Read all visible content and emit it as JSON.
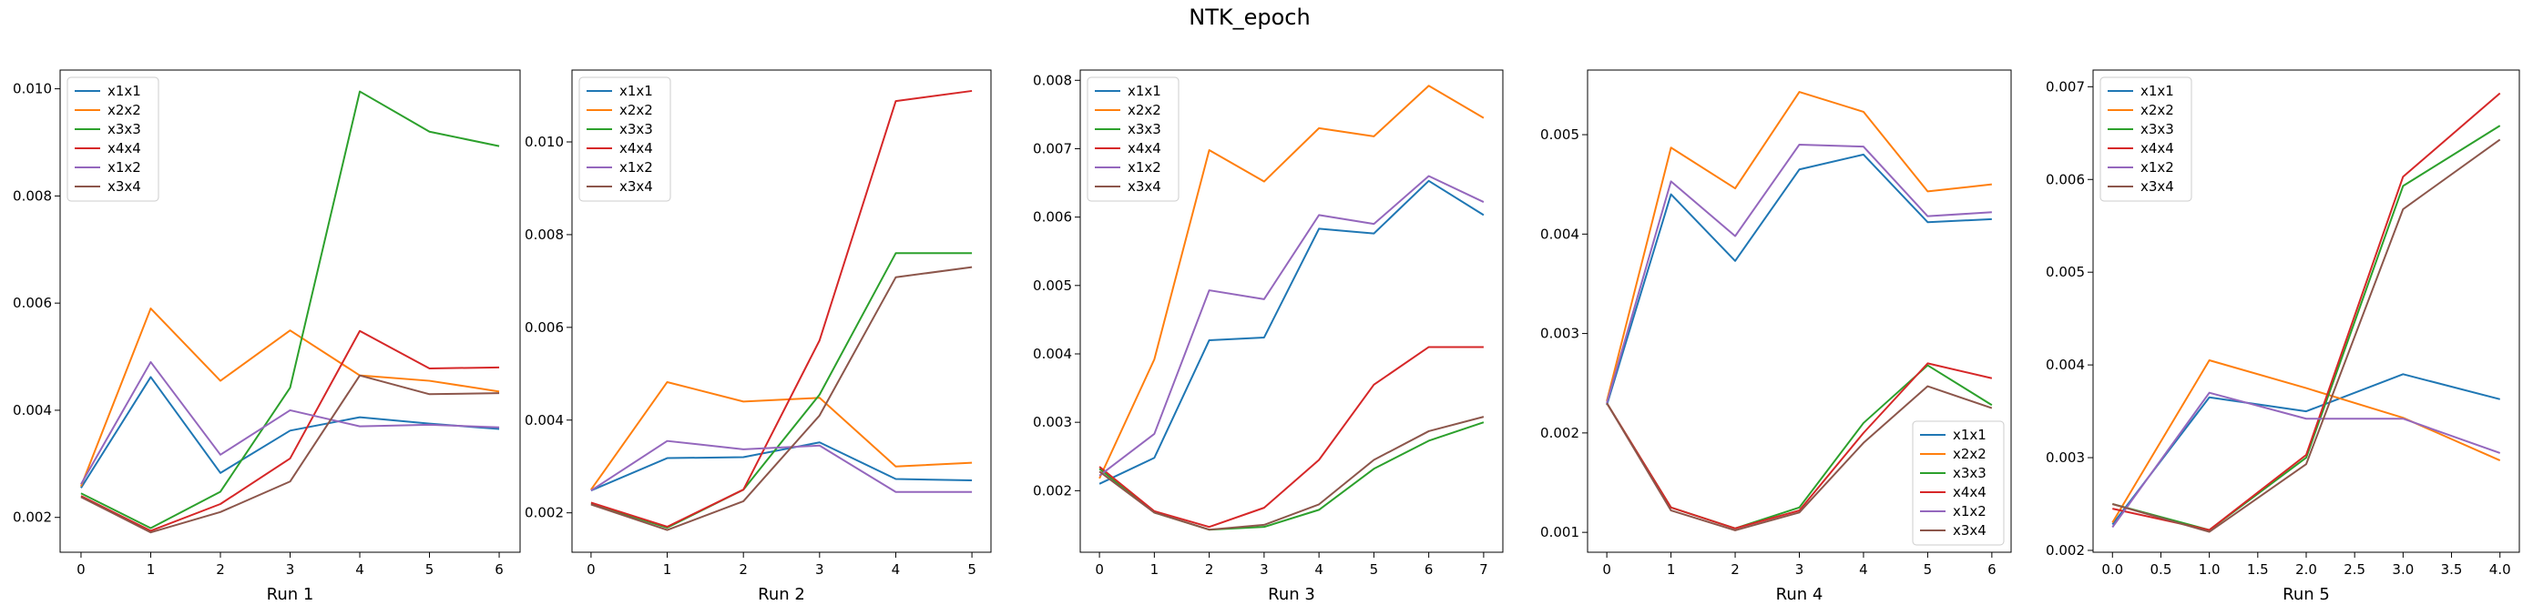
{
  "figure": {
    "suptitle": "NTK_epoch"
  },
  "colors": {
    "x1x1": "#1f77b4",
    "x2x2": "#ff7f0e",
    "x3x3": "#2ca02c",
    "x4x4": "#d62728",
    "x1x2": "#9467bd",
    "x3x4": "#8c564b"
  },
  "chart_data": [
    {
      "type": "line",
      "xlabel": "Run 1",
      "x": [
        0,
        1,
        2,
        3,
        4,
        5,
        6
      ],
      "xticks": [
        "0",
        "1",
        "2",
        "3",
        "4",
        "5",
        "6"
      ],
      "xlim": [
        -0.3,
        6.3
      ],
      "ylim": [
        0.00135,
        0.01035
      ],
      "yticks": [
        "0.002",
        "0.004",
        "0.006",
        "0.008",
        "0.010"
      ],
      "ytick_values": [
        0.002,
        0.004,
        0.006,
        0.008,
        0.01
      ],
      "legend": "top-left",
      "series": [
        {
          "name": "x1x1",
          "values": [
            0.00255,
            0.00462,
            0.00283,
            0.00362,
            0.00387,
            0.00375,
            0.00365
          ]
        },
        {
          "name": "x2x2",
          "values": [
            0.00258,
            0.0059,
            0.00455,
            0.00549,
            0.00465,
            0.00455,
            0.00435
          ]
        },
        {
          "name": "x3x3",
          "values": [
            0.00245,
            0.0018,
            0.00248,
            0.00442,
            0.00995,
            0.0092,
            0.00893
          ]
        },
        {
          "name": "x4x4",
          "values": [
            0.0024,
            0.00175,
            0.00225,
            0.0031,
            0.00548,
            0.00478,
            0.0048
          ]
        },
        {
          "name": "x1x2",
          "values": [
            0.00262,
            0.0049,
            0.00317,
            0.004,
            0.0037,
            0.00373,
            0.00368
          ]
        },
        {
          "name": "x3x4",
          "values": [
            0.00238,
            0.00172,
            0.0021,
            0.00267,
            0.00465,
            0.0043,
            0.00432
          ]
        }
      ]
    },
    {
      "type": "line",
      "xlabel": "Run 2",
      "x": [
        0,
        1,
        2,
        3,
        4,
        5
      ],
      "xticks": [
        "0",
        "1",
        "2",
        "3",
        "4",
        "5"
      ],
      "xlim": [
        -0.25,
        5.25
      ],
      "ylim": [
        0.00115,
        0.01155
      ],
      "yticks": [
        "0.002",
        "0.004",
        "0.006",
        "0.008",
        "0.010"
      ],
      "ytick_values": [
        0.002,
        0.004,
        0.006,
        0.008,
        0.01
      ],
      "legend": "top-left",
      "series": [
        {
          "name": "x1x1",
          "values": [
            0.00248,
            0.00318,
            0.0032,
            0.00352,
            0.00273,
            0.0027
          ]
        },
        {
          "name": "x2x2",
          "values": [
            0.0025,
            0.00482,
            0.0044,
            0.00448,
            0.003,
            0.00308
          ]
        },
        {
          "name": "x3x3",
          "values": [
            0.0022,
            0.00168,
            0.0025,
            0.00455,
            0.0076,
            0.0076
          ]
        },
        {
          "name": "x4x4",
          "values": [
            0.00222,
            0.0017,
            0.0025,
            0.00572,
            0.01088,
            0.0111
          ]
        },
        {
          "name": "x1x2",
          "values": [
            0.00248,
            0.00355,
            0.00337,
            0.00345,
            0.00245,
            0.00245
          ]
        },
        {
          "name": "x3x4",
          "values": [
            0.00218,
            0.00163,
            0.00225,
            0.0041,
            0.00708,
            0.0073
          ]
        }
      ]
    },
    {
      "type": "line",
      "xlabel": "Run 3",
      "x": [
        0,
        1,
        2,
        3,
        4,
        5,
        6,
        7
      ],
      "xticks": [
        "0",
        "1",
        "2",
        "3",
        "4",
        "5",
        "6",
        "7"
      ],
      "xlim": [
        -0.35,
        7.35
      ],
      "ylim": [
        0.0011,
        0.00815
      ],
      "yticks": [
        "0.002",
        "0.003",
        "0.004",
        "0.005",
        "0.006",
        "0.007",
        "0.008"
      ],
      "ytick_values": [
        0.002,
        0.003,
        0.004,
        0.005,
        0.006,
        0.007,
        0.008
      ],
      "legend": "top-left",
      "series": [
        {
          "name": "x1x1",
          "values": [
            0.0021,
            0.00248,
            0.0042,
            0.00424,
            0.00583,
            0.00576,
            0.00653,
            0.00603
          ]
        },
        {
          "name": "x2x2",
          "values": [
            0.00218,
            0.00392,
            0.00698,
            0.00652,
            0.0073,
            0.00718,
            0.00792,
            0.00745
          ]
        },
        {
          "name": "x3x3",
          "values": [
            0.00232,
            0.00168,
            0.00143,
            0.00147,
            0.00172,
            0.00232,
            0.00273,
            0.003
          ]
        },
        {
          "name": "x4x4",
          "values": [
            0.00235,
            0.0017,
            0.00147,
            0.00175,
            0.00245,
            0.00355,
            0.0041,
            0.0041
          ]
        },
        {
          "name": "x1x2",
          "values": [
            0.00222,
            0.00283,
            0.00493,
            0.0048,
            0.00603,
            0.0059,
            0.0066,
            0.00622
          ]
        },
        {
          "name": "x3x4",
          "values": [
            0.00228,
            0.00168,
            0.00143,
            0.0015,
            0.0018,
            0.00245,
            0.00287,
            0.00308
          ]
        }
      ]
    },
    {
      "type": "line",
      "xlabel": "Run 4",
      "x": [
        0,
        1,
        2,
        3,
        4,
        5,
        6
      ],
      "xticks": [
        "0",
        "1",
        "2",
        "3",
        "4",
        "5",
        "6"
      ],
      "xlim": [
        -0.3,
        6.3
      ],
      "ylim": [
        0.0008,
        0.00565
      ],
      "yticks": [
        "0.001",
        "0.002",
        "0.003",
        "0.004",
        "0.005"
      ],
      "ytick_values": [
        0.001,
        0.002,
        0.003,
        0.004,
        0.005
      ],
      "legend": "bottom-right",
      "series": [
        {
          "name": "x1x1",
          "values": [
            0.00228,
            0.0044,
            0.00373,
            0.00465,
            0.0048,
            0.00412,
            0.00415
          ]
        },
        {
          "name": "x2x2",
          "values": [
            0.00232,
            0.00487,
            0.00446,
            0.00543,
            0.00523,
            0.00443,
            0.0045
          ]
        },
        {
          "name": "x3x3",
          "values": [
            0.0023,
            0.00125,
            0.00104,
            0.00125,
            0.0021,
            0.00268,
            0.00228
          ]
        },
        {
          "name": "x4x4",
          "values": [
            0.0023,
            0.00125,
            0.00104,
            0.00122,
            0.002,
            0.0027,
            0.00255
          ]
        },
        {
          "name": "x1x2",
          "values": [
            0.0023,
            0.00453,
            0.00398,
            0.0049,
            0.00488,
            0.00418,
            0.00422
          ]
        },
        {
          "name": "x3x4",
          "values": [
            0.0023,
            0.00122,
            0.00102,
            0.0012,
            0.0019,
            0.00247,
            0.00225
          ]
        }
      ]
    },
    {
      "type": "line",
      "xlabel": "Run 5",
      "x": [
        0,
        1,
        2,
        3,
        4
      ],
      "xticks": [
        "0.0",
        "0.5",
        "1.0",
        "1.5",
        "2.0",
        "2.5",
        "3.0",
        "3.5",
        "4.0"
      ],
      "xtick_values": [
        0,
        0.5,
        1.0,
        1.5,
        2.0,
        2.5,
        3.0,
        3.5,
        4.0
      ],
      "xlim": [
        -0.2,
        4.2
      ],
      "ylim": [
        0.00198,
        0.00718
      ],
      "yticks": [
        "0.002",
        "0.003",
        "0.004",
        "0.005",
        "0.006",
        "0.007"
      ],
      "ytick_values": [
        0.002,
        0.003,
        0.004,
        0.005,
        0.006,
        0.007
      ],
      "legend": "top-left",
      "series": [
        {
          "name": "x1x1",
          "values": [
            0.00228,
            0.00365,
            0.0035,
            0.0039,
            0.00363
          ]
        },
        {
          "name": "x2x2",
          "values": [
            0.0023,
            0.00405,
            0.00375,
            0.00343,
            0.00297
          ]
        },
        {
          "name": "x3x3",
          "values": [
            0.0025,
            0.00222,
            0.003,
            0.00593,
            0.00658
          ]
        },
        {
          "name": "x4x4",
          "values": [
            0.00245,
            0.00222,
            0.00303,
            0.00603,
            0.00693
          ]
        },
        {
          "name": "x1x2",
          "values": [
            0.00225,
            0.0037,
            0.00342,
            0.00342,
            0.00305
          ]
        },
        {
          "name": "x3x4",
          "values": [
            0.0025,
            0.0022,
            0.00293,
            0.00568,
            0.00643
          ]
        }
      ]
    }
  ]
}
